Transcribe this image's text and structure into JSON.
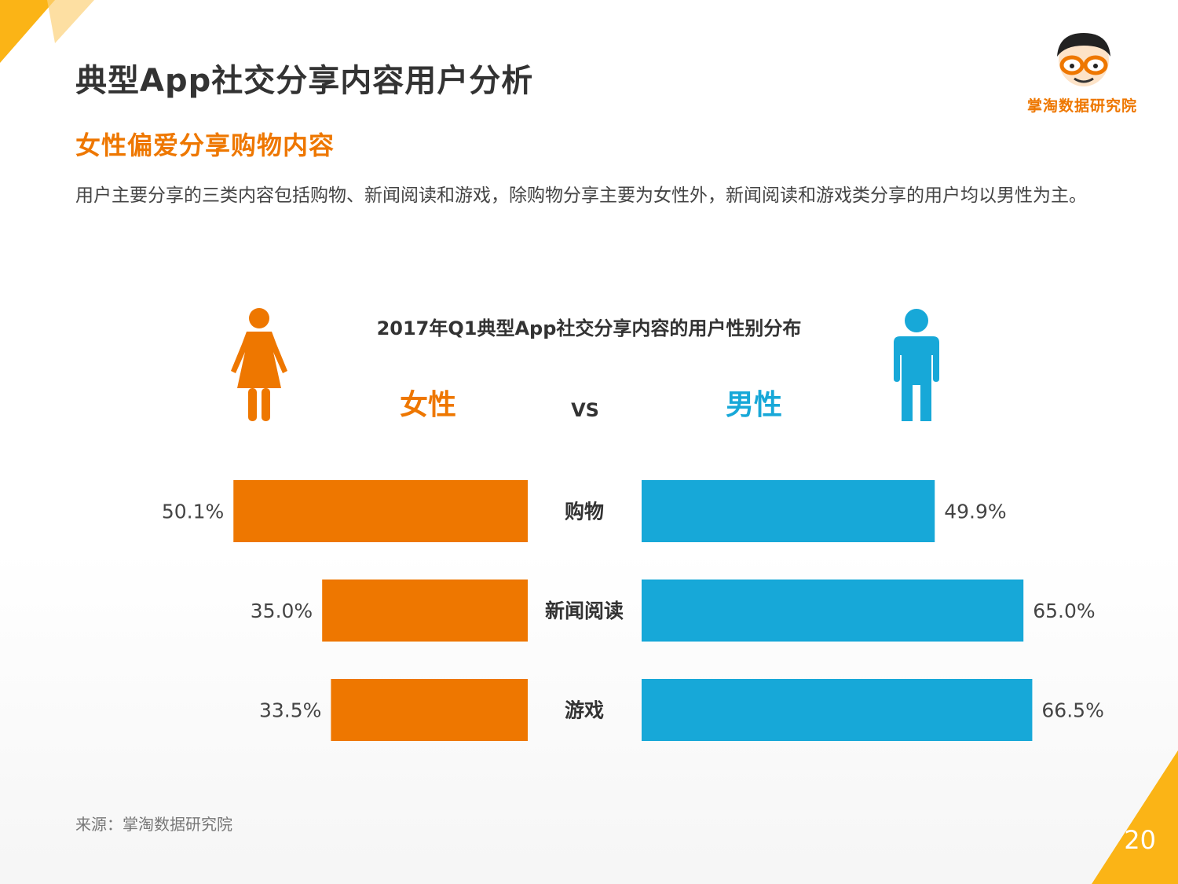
{
  "page": {
    "title": "典型App社交分享内容用户分析",
    "subtitle": "女性偏爱分享购物内容",
    "description": "用户主要分享的三类内容包括购物、新闻阅读和游戏，除购物分享主要为女性外，新闻阅读和游戏类分享的用户均以男性为主。",
    "logo_text": "掌淘数据研究院",
    "source": "来源：掌淘数据研究院",
    "page_number": "20"
  },
  "colors": {
    "female": "#ee7700",
    "male": "#17a8d8",
    "accent_yellow": "#fbb416"
  },
  "icons": {
    "female": "female-figure-icon",
    "male": "male-figure-icon",
    "logo": "cartoon-face-glasses-icon"
  },
  "chart_data": {
    "type": "bar",
    "orientation": "horizontal-butterfly",
    "title": "2017年Q1典型App社交分享内容的用户性别分布",
    "left_label": "女性",
    "right_label": "男性",
    "vs_label": "VS",
    "unit": "%",
    "xlim": [
      0,
      100
    ],
    "categories": [
      "购物",
      "新闻阅读",
      "游戏"
    ],
    "series": [
      {
        "name": "女性",
        "values": [
          50.1,
          35.0,
          33.5
        ],
        "labels": [
          "50.1%",
          "35.0%",
          "33.5%"
        ]
      },
      {
        "name": "男性",
        "values": [
          49.9,
          65.0,
          66.5
        ],
        "labels": [
          "49.9%",
          "65.0%",
          "66.5%"
        ]
      }
    ]
  }
}
